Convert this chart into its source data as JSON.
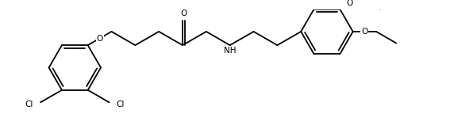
{
  "line_color": "#000000",
  "bg_color": "#ffffff",
  "lw": 1.3,
  "fs": 7.5,
  "fig_w": 5.72,
  "fig_h": 1.58,
  "dpi": 100,
  "xlim": [
    0.0,
    9.6
  ],
  "ylim": [
    0.1,
    2.7
  ]
}
